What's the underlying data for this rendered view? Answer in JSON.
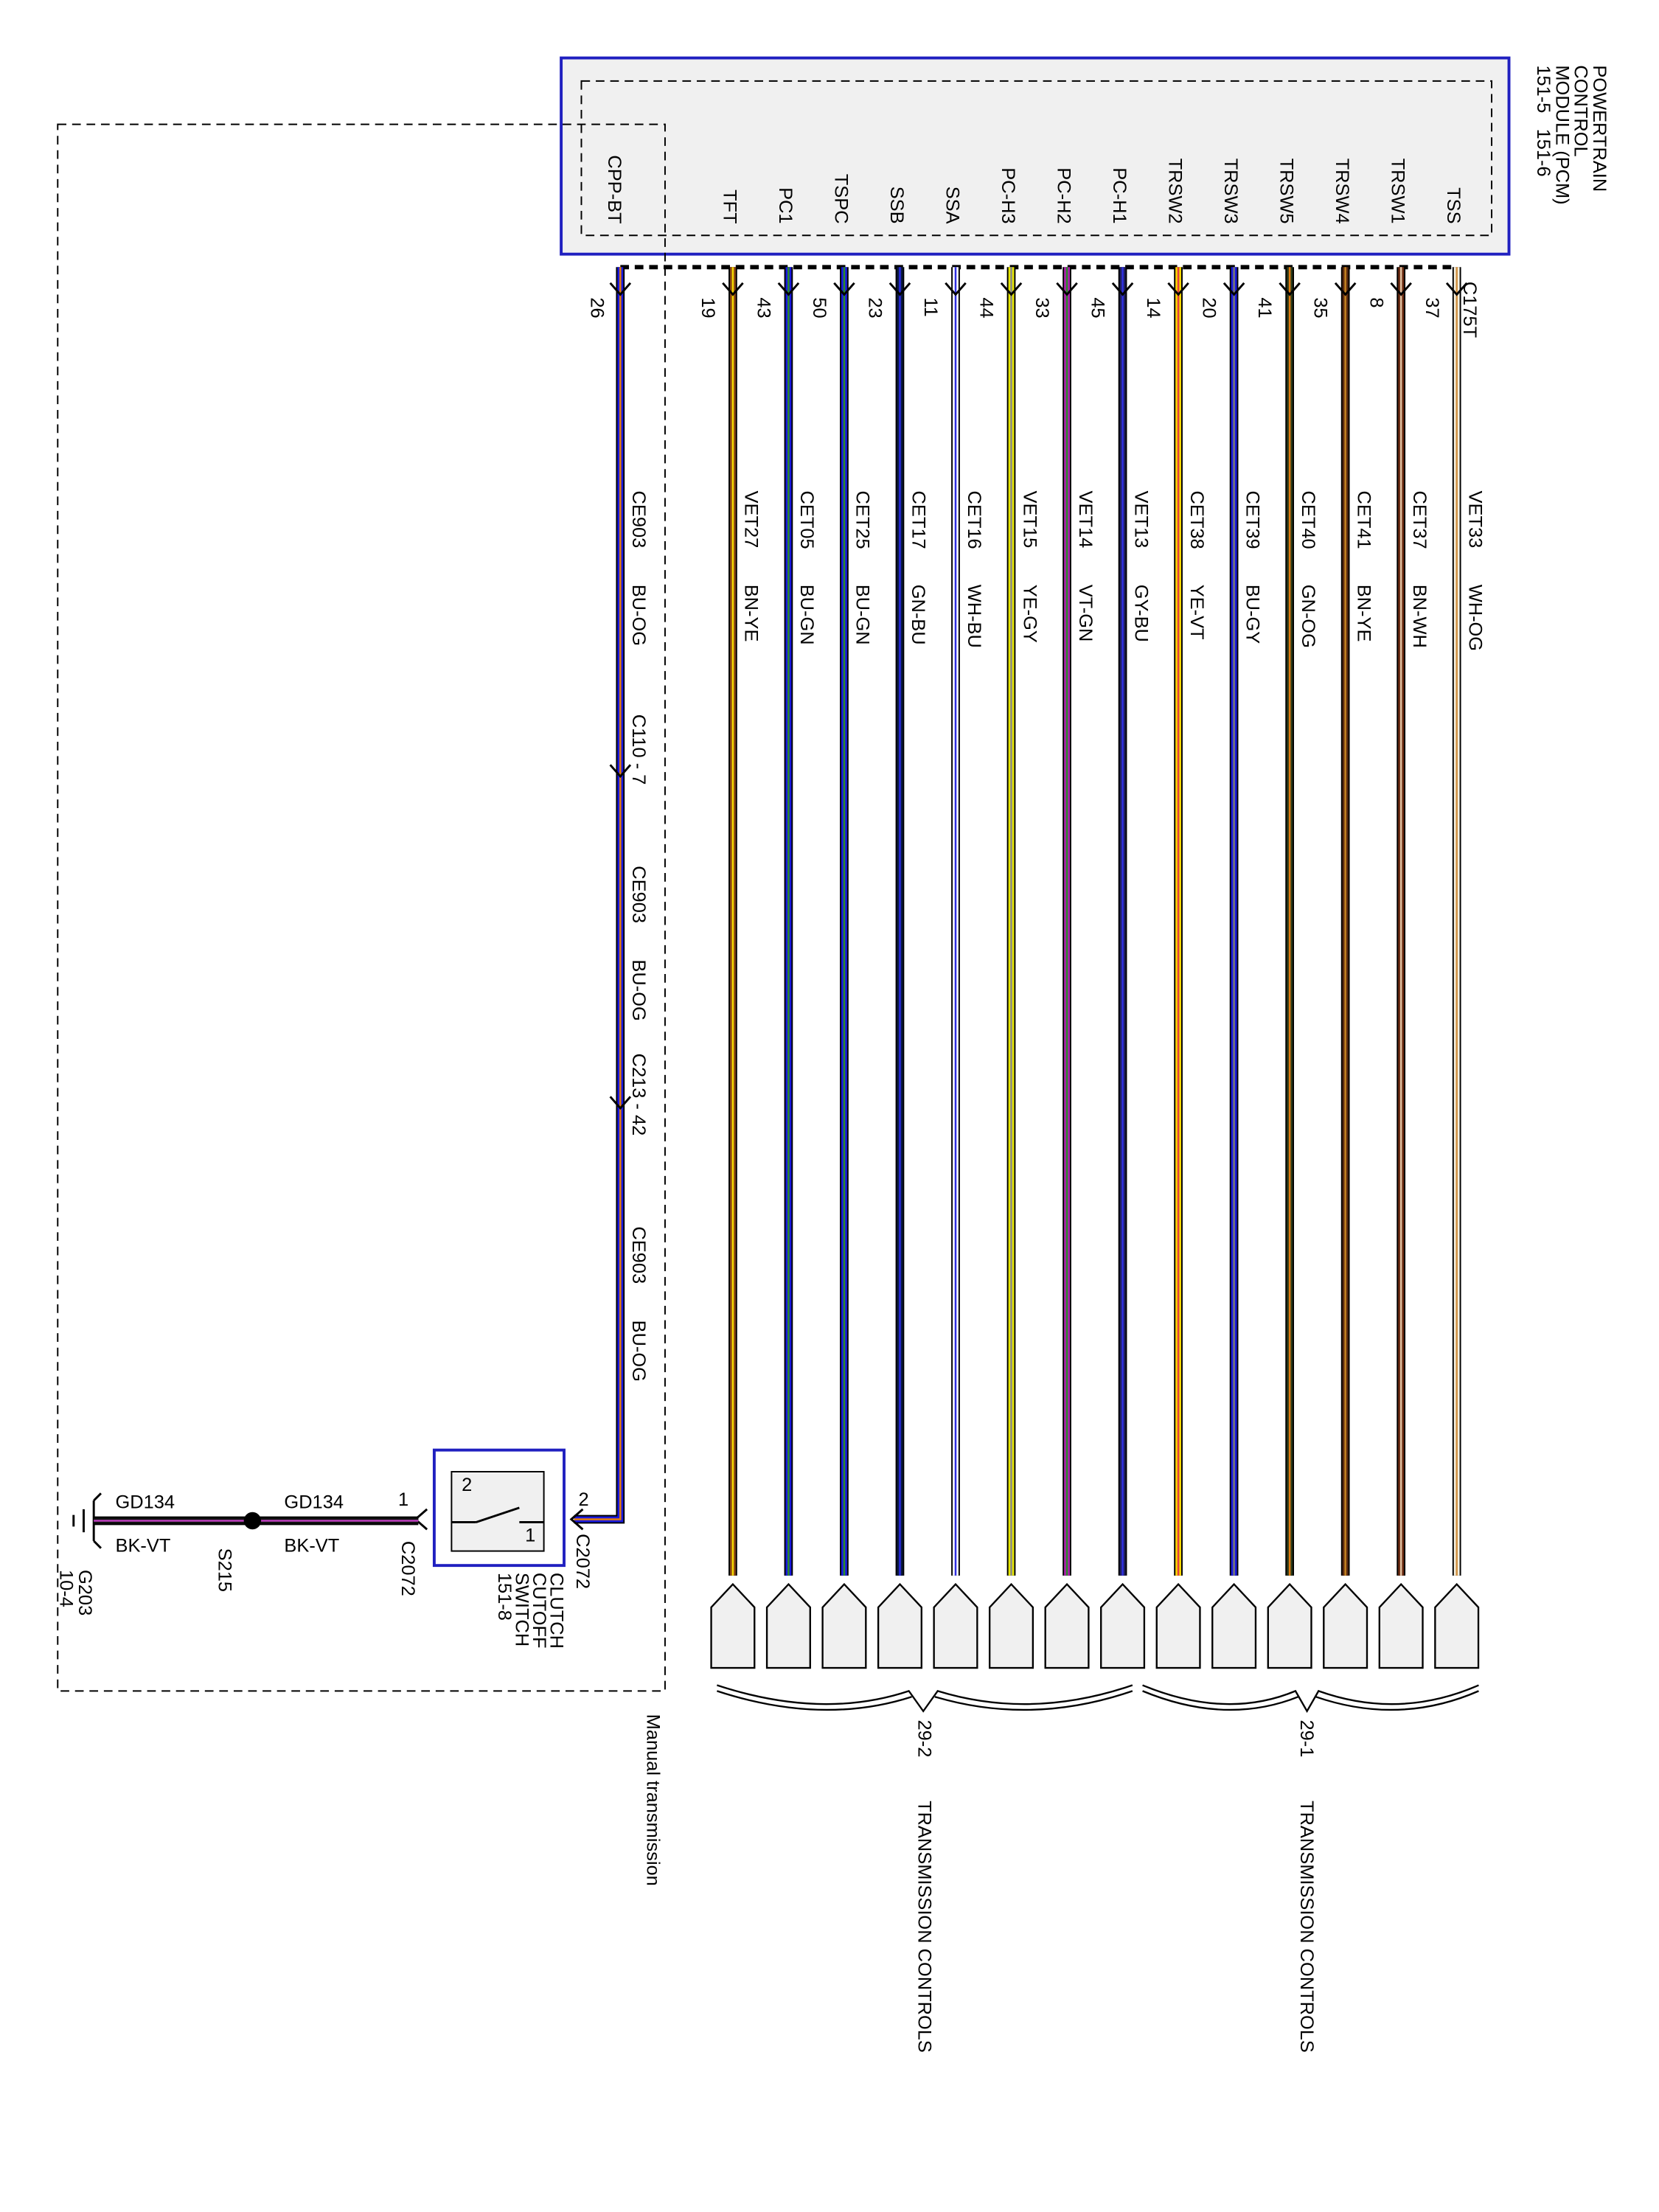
{
  "module": {
    "title": [
      "POWERTRAIN",
      "CONTROL",
      "MODULE (PCM)",
      "151-5   151-6"
    ],
    "connector": "C175T"
  },
  "wires": [
    {
      "pin_name": "TFT",
      "pin": "19",
      "circuit": "VET27",
      "color": "BN-YE",
      "base": "#8b4513",
      "stripe": "#f5d800"
    },
    {
      "pin_name": "PC1",
      "pin": "43",
      "circuit": "CET05",
      "color": "BU-GN",
      "base": "#1a1adf",
      "stripe": "#2a8a2a"
    },
    {
      "pin_name": "TSPC",
      "pin": "50",
      "circuit": "CET25",
      "color": "BU-GN",
      "base": "#1a1adf",
      "stripe": "#2a8a2a"
    },
    {
      "pin_name": "SSB",
      "pin": "23",
      "circuit": "CET17",
      "color": "GN-BU",
      "base": "#0a1a40",
      "stripe": "#2a2adf"
    },
    {
      "pin_name": "SSA",
      "pin": "11",
      "circuit": "CET16",
      "color": "WH-BU",
      "base": "#ffffff",
      "stripe": "#3030e0"
    },
    {
      "pin_name": "PC-H3",
      "pin": "44",
      "circuit": "VET15",
      "color": "YE-GY",
      "base": "#e8e800",
      "stripe": "#888888"
    },
    {
      "pin_name": "PC-H2",
      "pin": "33",
      "circuit": "VET14",
      "color": "VT-GN",
      "base": "#b020b0",
      "stripe": "#2a8a2a"
    },
    {
      "pin_name": "PC-H1",
      "pin": "45",
      "circuit": "VET13",
      "color": "GY-BU",
      "base": "#202060",
      "stripe": "#3030e0"
    },
    {
      "pin_name": "TRSW2",
      "pin": "14",
      "circuit": "CET38",
      "color": "YE-VT",
      "base": "#ffd800",
      "stripe": "#e04040"
    },
    {
      "pin_name": "TRSW3",
      "pin": "20",
      "circuit": "CET39",
      "color": "BU-GY",
      "base": "#1a1adf",
      "stripe": "#777777"
    },
    {
      "pin_name": "TRSW5",
      "pin": "41",
      "circuit": "CET40",
      "color": "GN-OG",
      "base": "#2a3a1a",
      "stripe": "#e07a10"
    },
    {
      "pin_name": "TRSW4",
      "pin": "35",
      "circuit": "CET41",
      "color": "BN-YE",
      "base": "#5a2a10",
      "stripe": "#c08020"
    },
    {
      "pin_name": "TRSW1",
      "pin": "8",
      "circuit": "CET37",
      "color": "BN-WH",
      "base": "#6a2a10",
      "stripe": "#e0c0a0"
    },
    {
      "pin_name": "TSS",
      "pin": "37",
      "circuit": "VET33",
      "color": "WH-OG",
      "base": "#f5f0e0",
      "stripe": "#d09040"
    }
  ],
  "cpp": {
    "pin_name": "CPP-BT",
    "pin": "26",
    "segments": [
      {
        "circuit": "CE903",
        "color": "BU-OG"
      },
      {
        "circuit": "CE903",
        "color": "BU-OG"
      },
      {
        "circuit": "CE903",
        "color": "BU-OG"
      }
    ],
    "connectors": [
      "C110 - 7",
      "C213 - 42"
    ]
  },
  "switch": {
    "name": [
      "CLUTCH",
      "CUTOFF",
      "SWITCH",
      "151-8"
    ],
    "pins": [
      "2",
      "1"
    ],
    "connector": "C2072",
    "contacts": [
      "2",
      "1"
    ]
  },
  "ground_wire": [
    {
      "circuit": "GD134",
      "color": "BK-VT"
    },
    {
      "circuit": "GD134",
      "color": "BK-VT"
    }
  ],
  "splice": "S215",
  "ground": [
    "G203",
    "10-4"
  ],
  "groups": [
    {
      "id": "29-2",
      "label": "TRANSMISSION CONTROLS"
    },
    {
      "id": "29-1",
      "label": "TRANSMISSION CONTROLS"
    }
  ],
  "note": "Manual transmission"
}
